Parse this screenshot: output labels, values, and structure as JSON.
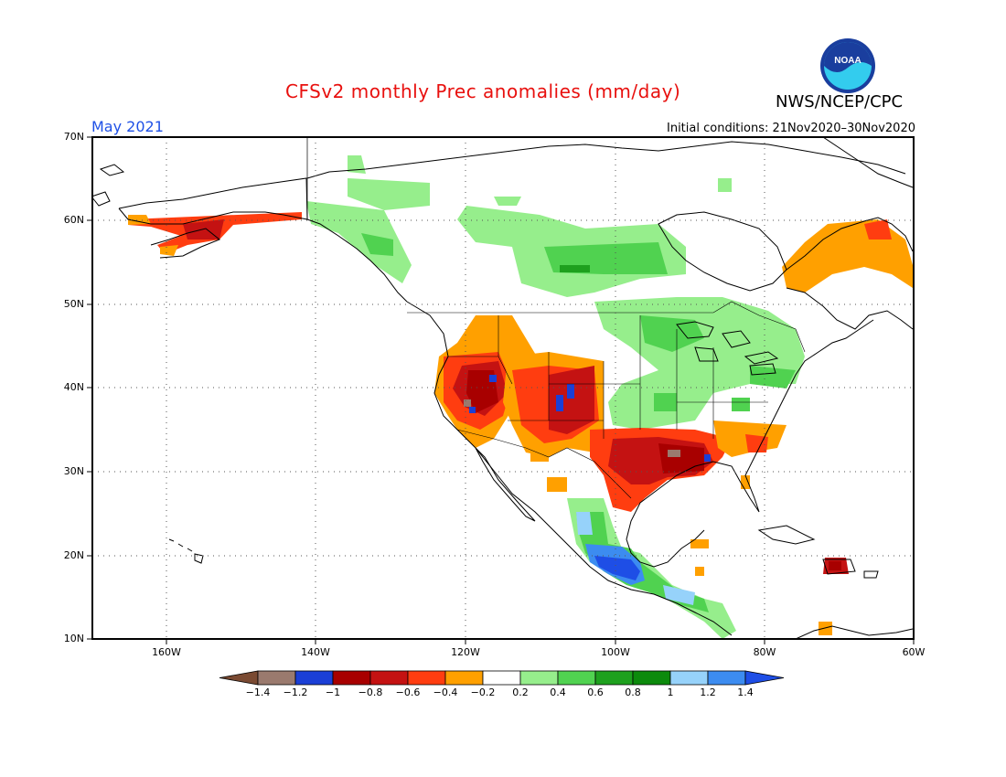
{
  "header": {
    "title": "CFSv2 monthly Prec anomalies (mm/day)",
    "agency": "NWS/NCEP/CPC",
    "month": "May 2021",
    "initial_conditions": "Initial conditions: 21Nov2020–30Nov2020",
    "logo_text": "NOAA"
  },
  "map": {
    "lat_labels": [
      "70N",
      "60N",
      "50N",
      "40N",
      "30N",
      "20N",
      "10N"
    ],
    "lon_labels": [
      "160W",
      "140W",
      "120W",
      "100W",
      "80W",
      "60W"
    ],
    "lat_range": [
      10,
      70
    ],
    "lon_range": [
      -170,
      -60
    ],
    "grid": "dotted",
    "anomalies": [
      {
        "region": "Pacific Northwest / Great Basin",
        "anomaly": -0.8
      },
      {
        "region": "Northern California / Nevada",
        "anomaly": -1.0
      },
      {
        "region": "Colorado / New Mexico",
        "anomaly": -0.8
      },
      {
        "region": "Texas Gulf Coast / Louisiana",
        "anomaly": -1.0
      },
      {
        "region": "Southern Alaska",
        "anomaly": -0.6
      },
      {
        "region": "Labrador / Quebec",
        "anomaly": -0.4
      },
      {
        "region": "Central Canada",
        "anomaly": 0.4
      },
      {
        "region": "Great Lakes / Ohio Valley",
        "anomaly": 0.4
      },
      {
        "region": "Southern Mexico Pacific coast",
        "anomaly": 1.2
      },
      {
        "region": "Central America",
        "anomaly": 0.8
      },
      {
        "region": "Hispaniola",
        "anomaly": -1.0
      }
    ]
  },
  "colorbar": {
    "tick_labels": [
      "−1.4",
      "−1.2",
      "−1",
      "−0.8",
      "−0.6",
      "−0.4",
      "−0.2",
      "0.2",
      "0.4",
      "0.6",
      "0.8",
      "1",
      "1.2",
      "1.4"
    ],
    "colors": [
      "#7a4a32",
      "#9a7a6e",
      "#1b3fd6",
      "#a80000",
      "#c41212",
      "#ff3d10",
      "#ffa000",
      "#ffffff",
      "#96ee8c",
      "#50d250",
      "#1ea01e",
      "#0c8a0c",
      "#96d2fa",
      "#3c8cf0",
      "#1e4ee6"
    ]
  }
}
